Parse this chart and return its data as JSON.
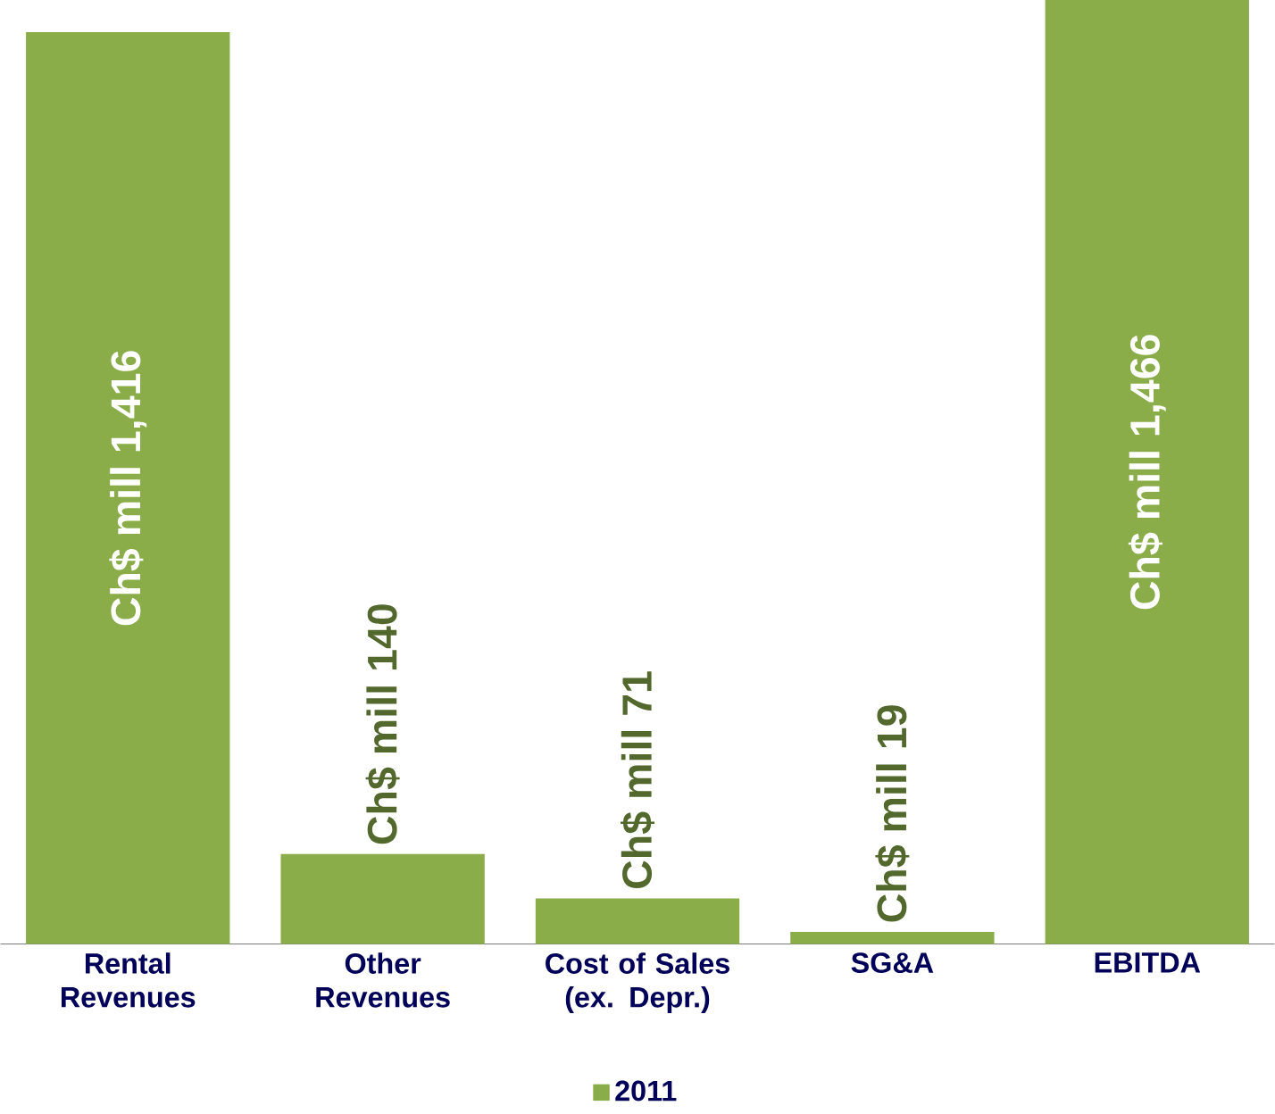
{
  "chart_data": {
    "type": "bar",
    "categories": [
      "Rental Revenues",
      "Other Revenues",
      "Cost of Sales (ex. Depr.)",
      "SG&A",
      "EBITDA"
    ],
    "series": [
      {
        "name": "2011",
        "color": "#8aad4a",
        "values": [
          1416,
          140,
          71,
          19,
          1466
        ],
        "value_labels": [
          "Ch$ mill 1,416",
          "Ch$ mill 140",
          "Ch$ mill 71",
          "Ch$ mill 19",
          "Ch$ mill 1,466"
        ]
      }
    ],
    "legend": "bottom"
  }
}
